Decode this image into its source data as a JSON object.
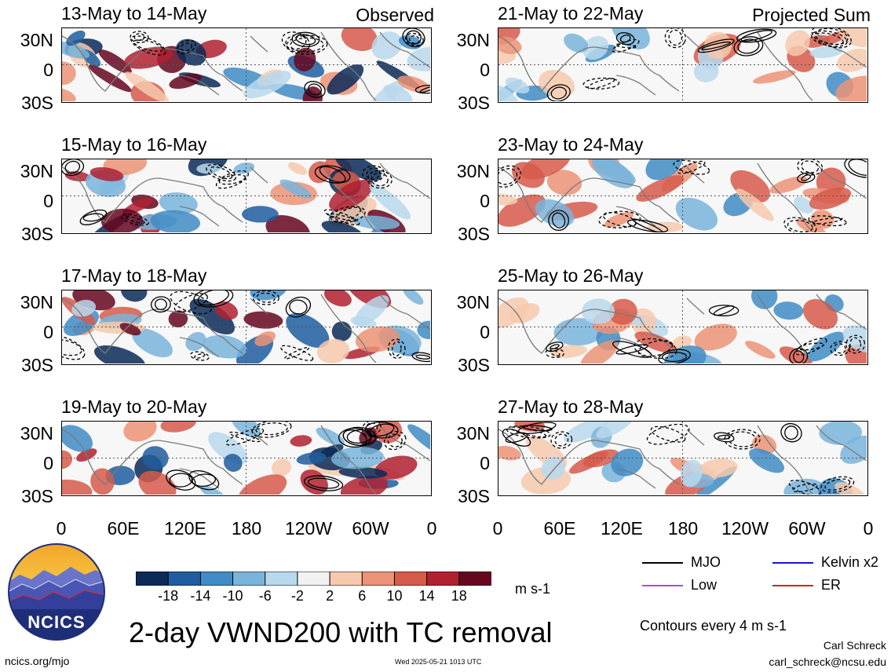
{
  "panels": [
    {
      "title": "13-May to 14-May",
      "tag": "Observed"
    },
    {
      "title": "15-May to 16-May",
      "tag": ""
    },
    {
      "title": "17-May to 18-May",
      "tag": ""
    },
    {
      "title": "19-May to 20-May",
      "tag": ""
    },
    {
      "title": "21-May to 22-May",
      "tag": "Projected Sum"
    },
    {
      "title": "23-May to 24-May",
      "tag": ""
    },
    {
      "title": "25-May to 26-May",
      "tag": ""
    },
    {
      "title": "27-May to 28-May",
      "tag": ""
    }
  ],
  "lat_labels": [
    "30N",
    "0",
    "30S"
  ],
  "lon_labels": [
    "0",
    "60E",
    "120E",
    "180",
    "120W",
    "60W",
    "0"
  ],
  "colorbar": {
    "labels": [
      "-18",
      "-14",
      "-10",
      "-6",
      "-2",
      "2",
      "6",
      "10",
      "14",
      "18"
    ],
    "colors": [
      "#0b2a57",
      "#1f5da0",
      "#3f8cc6",
      "#79b4da",
      "#b8d8ec",
      "#f2f2f2",
      "#f6c9ad",
      "#ec9377",
      "#d65b4b",
      "#b02130",
      "#66061f"
    ],
    "units": "m s-1"
  },
  "main_title": "2-day VWND200 with TC removal",
  "contour_note": "Contours every 4 m s-1",
  "legend": [
    {
      "label": "MJO",
      "color": "#000000"
    },
    {
      "label": "Kelvin x2",
      "color": "#1515d8"
    },
    {
      "label": "Low",
      "color": "#a64dd8"
    },
    {
      "label": "ER",
      "color": "#d62020"
    }
  ],
  "logo_text": "NCICS",
  "site": "ncics.org/mjo",
  "timestamp": "Wed 2025-05-21 1013 UTC",
  "author": "Carl Schreck",
  "email": "carl_schreck@ncsu.edu"
}
